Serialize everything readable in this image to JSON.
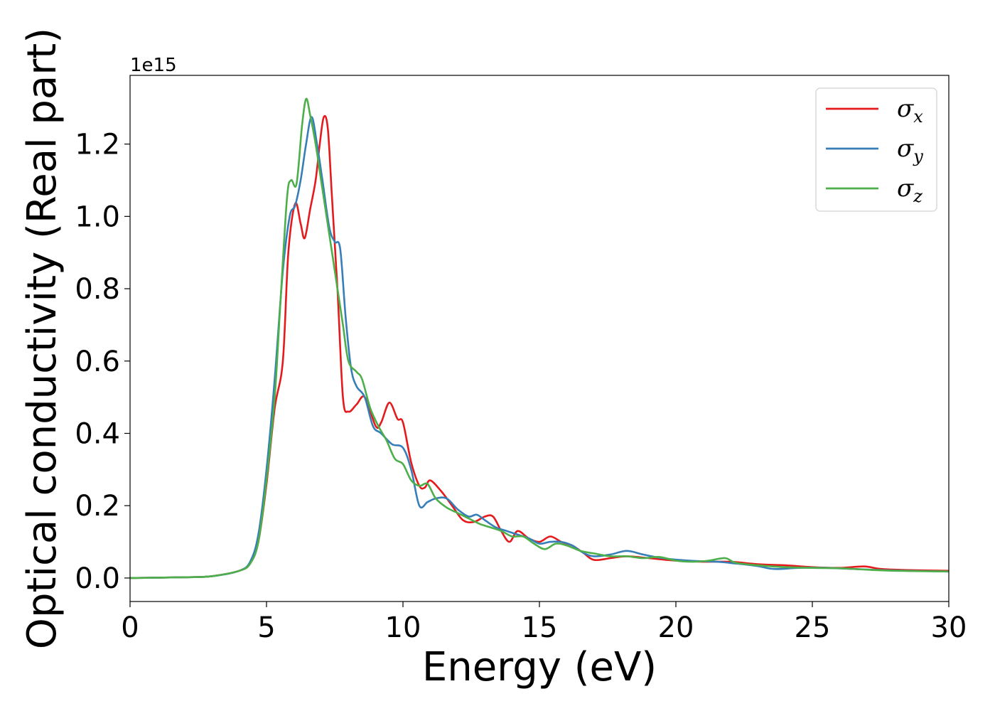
{
  "chart_data": {
    "type": "line",
    "title": "",
    "xlabel": "Energy (eV)",
    "ylabel": "Optical conductivity (Real part)",
    "y_offset_label": "1e15",
    "xlim": [
      0,
      30
    ],
    "ylim": [
      -0.065,
      1.39
    ],
    "x_ticks": [
      0,
      5,
      10,
      15,
      20,
      25,
      30
    ],
    "y_ticks": [
      0.0,
      0.2,
      0.4,
      0.6,
      0.8,
      1.0,
      1.2
    ],
    "x_tick_labels": [
      "0",
      "5",
      "10",
      "15",
      "20",
      "25",
      "30"
    ],
    "y_tick_labels": [
      "0.0",
      "0.2",
      "0.4",
      "0.6",
      "0.8",
      "1.0",
      "1.2"
    ],
    "grid": false,
    "legend_position": "top-right",
    "series": [
      {
        "name": "σx",
        "legend_base": "σ",
        "legend_sub": "x",
        "color": "#e41a1c",
        "points": [
          [
            0,
            0
          ],
          [
            2,
            0.002
          ],
          [
            3,
            0.005
          ],
          [
            4,
            0.02
          ],
          [
            4.4,
            0.04
          ],
          [
            4.7,
            0.1
          ],
          [
            5.0,
            0.26
          ],
          [
            5.3,
            0.47
          ],
          [
            5.6,
            0.6
          ],
          [
            5.8,
            0.9
          ],
          [
            6.05,
            1.035
          ],
          [
            6.25,
            0.98
          ],
          [
            6.4,
            0.94
          ],
          [
            6.6,
            1.02
          ],
          [
            6.8,
            1.1
          ],
          [
            6.95,
            1.2
          ],
          [
            7.1,
            1.275
          ],
          [
            7.25,
            1.24
          ],
          [
            7.4,
            1.05
          ],
          [
            7.6,
            0.8
          ],
          [
            7.8,
            0.5
          ],
          [
            8.0,
            0.46
          ],
          [
            8.3,
            0.48
          ],
          [
            8.6,
            0.5
          ],
          [
            9.0,
            0.42
          ],
          [
            9.2,
            0.43
          ],
          [
            9.5,
            0.485
          ],
          [
            9.8,
            0.44
          ],
          [
            10.0,
            0.43
          ],
          [
            10.3,
            0.32
          ],
          [
            10.6,
            0.255
          ],
          [
            10.8,
            0.25
          ],
          [
            11.0,
            0.27
          ],
          [
            11.4,
            0.24
          ],
          [
            11.8,
            0.2
          ],
          [
            12.2,
            0.16
          ],
          [
            12.6,
            0.155
          ],
          [
            13.0,
            0.17
          ],
          [
            13.3,
            0.17
          ],
          [
            13.6,
            0.13
          ],
          [
            13.9,
            0.1
          ],
          [
            14.2,
            0.13
          ],
          [
            14.6,
            0.11
          ],
          [
            15.0,
            0.1
          ],
          [
            15.4,
            0.115
          ],
          [
            15.8,
            0.1
          ],
          [
            16.2,
            0.09
          ],
          [
            16.6,
            0.07
          ],
          [
            17.0,
            0.05
          ],
          [
            17.6,
            0.055
          ],
          [
            18.2,
            0.06
          ],
          [
            19.0,
            0.055
          ],
          [
            20.0,
            0.048
          ],
          [
            21.0,
            0.045
          ],
          [
            22.0,
            0.045
          ],
          [
            23.0,
            0.038
          ],
          [
            24.0,
            0.035
          ],
          [
            25.0,
            0.03
          ],
          [
            26.0,
            0.028
          ],
          [
            26.9,
            0.032
          ],
          [
            27.5,
            0.025
          ],
          [
            28.5,
            0.022
          ],
          [
            30,
            0.02
          ]
        ]
      },
      {
        "name": "σy",
        "legend_base": "σ",
        "legend_sub": "y",
        "color": "#377eb8",
        "points": [
          [
            0,
            0
          ],
          [
            2,
            0.002
          ],
          [
            3,
            0.005
          ],
          [
            4,
            0.02
          ],
          [
            4.4,
            0.045
          ],
          [
            4.7,
            0.12
          ],
          [
            5.0,
            0.3
          ],
          [
            5.3,
            0.55
          ],
          [
            5.6,
            0.85
          ],
          [
            5.85,
            1.0
          ],
          [
            6.05,
            1.03
          ],
          [
            6.25,
            1.1
          ],
          [
            6.45,
            1.2
          ],
          [
            6.65,
            1.275
          ],
          [
            6.85,
            1.2
          ],
          [
            7.05,
            1.1
          ],
          [
            7.3,
            0.97
          ],
          [
            7.5,
            0.93
          ],
          [
            7.7,
            0.91
          ],
          [
            7.9,
            0.72
          ],
          [
            8.1,
            0.58
          ],
          [
            8.3,
            0.53
          ],
          [
            8.6,
            0.5
          ],
          [
            8.9,
            0.42
          ],
          [
            9.2,
            0.4
          ],
          [
            9.6,
            0.37
          ],
          [
            10.0,
            0.36
          ],
          [
            10.3,
            0.3
          ],
          [
            10.6,
            0.2
          ],
          [
            10.9,
            0.21
          ],
          [
            11.2,
            0.22
          ],
          [
            11.6,
            0.22
          ],
          [
            12.0,
            0.19
          ],
          [
            12.4,
            0.17
          ],
          [
            12.7,
            0.175
          ],
          [
            13.0,
            0.16
          ],
          [
            13.4,
            0.14
          ],
          [
            13.8,
            0.13
          ],
          [
            14.2,
            0.12
          ],
          [
            14.6,
            0.11
          ],
          [
            15.0,
            0.095
          ],
          [
            15.4,
            0.1
          ],
          [
            15.8,
            0.1
          ],
          [
            16.2,
            0.09
          ],
          [
            16.6,
            0.07
          ],
          [
            17.0,
            0.06
          ],
          [
            17.6,
            0.065
          ],
          [
            18.2,
            0.075
          ],
          [
            18.8,
            0.065
          ],
          [
            19.5,
            0.055
          ],
          [
            20.5,
            0.048
          ],
          [
            21.5,
            0.045
          ],
          [
            22.2,
            0.04
          ],
          [
            23.0,
            0.033
          ],
          [
            23.6,
            0.025
          ],
          [
            24.5,
            0.028
          ],
          [
            25.5,
            0.028
          ],
          [
            26.5,
            0.025
          ],
          [
            27.5,
            0.022
          ],
          [
            28.5,
            0.02
          ],
          [
            30,
            0.018
          ]
        ]
      },
      {
        "name": "σz",
        "legend_base": "σ",
        "legend_sub": "z",
        "color": "#4daf4a",
        "points": [
          [
            0,
            0
          ],
          [
            2,
            0.002
          ],
          [
            3,
            0.005
          ],
          [
            4,
            0.02
          ],
          [
            4.4,
            0.04
          ],
          [
            4.7,
            0.1
          ],
          [
            5.0,
            0.27
          ],
          [
            5.3,
            0.5
          ],
          [
            5.5,
            0.75
          ],
          [
            5.75,
            1.05
          ],
          [
            5.9,
            1.1
          ],
          [
            6.1,
            1.09
          ],
          [
            6.3,
            1.25
          ],
          [
            6.45,
            1.325
          ],
          [
            6.6,
            1.28
          ],
          [
            6.8,
            1.2
          ],
          [
            7.0,
            1.1
          ],
          [
            7.2,
            1.0
          ],
          [
            7.4,
            0.9
          ],
          [
            7.6,
            0.8
          ],
          [
            7.8,
            0.7
          ],
          [
            8.0,
            0.6
          ],
          [
            8.3,
            0.57
          ],
          [
            8.5,
            0.55
          ],
          [
            8.8,
            0.47
          ],
          [
            9.1,
            0.42
          ],
          [
            9.4,
            0.38
          ],
          [
            9.7,
            0.33
          ],
          [
            10.0,
            0.315
          ],
          [
            10.3,
            0.27
          ],
          [
            10.6,
            0.255
          ],
          [
            10.9,
            0.26
          ],
          [
            11.2,
            0.22
          ],
          [
            11.6,
            0.195
          ],
          [
            12.0,
            0.18
          ],
          [
            12.4,
            0.165
          ],
          [
            12.8,
            0.15
          ],
          [
            13.2,
            0.14
          ],
          [
            13.6,
            0.13
          ],
          [
            14.0,
            0.115
          ],
          [
            14.4,
            0.115
          ],
          [
            14.8,
            0.095
          ],
          [
            15.2,
            0.08
          ],
          [
            15.6,
            0.095
          ],
          [
            16.0,
            0.09
          ],
          [
            16.5,
            0.075
          ],
          [
            17.0,
            0.068
          ],
          [
            17.6,
            0.06
          ],
          [
            18.2,
            0.06
          ],
          [
            18.8,
            0.055
          ],
          [
            19.4,
            0.058
          ],
          [
            20.0,
            0.048
          ],
          [
            20.6,
            0.045
          ],
          [
            21.2,
            0.048
          ],
          [
            21.8,
            0.055
          ],
          [
            22.2,
            0.042
          ],
          [
            23.0,
            0.035
          ],
          [
            24.0,
            0.03
          ],
          [
            25.0,
            0.028
          ],
          [
            26.0,
            0.027
          ],
          [
            27.0,
            0.023
          ],
          [
            28.0,
            0.02
          ],
          [
            30,
            0.018
          ]
        ]
      }
    ]
  }
}
